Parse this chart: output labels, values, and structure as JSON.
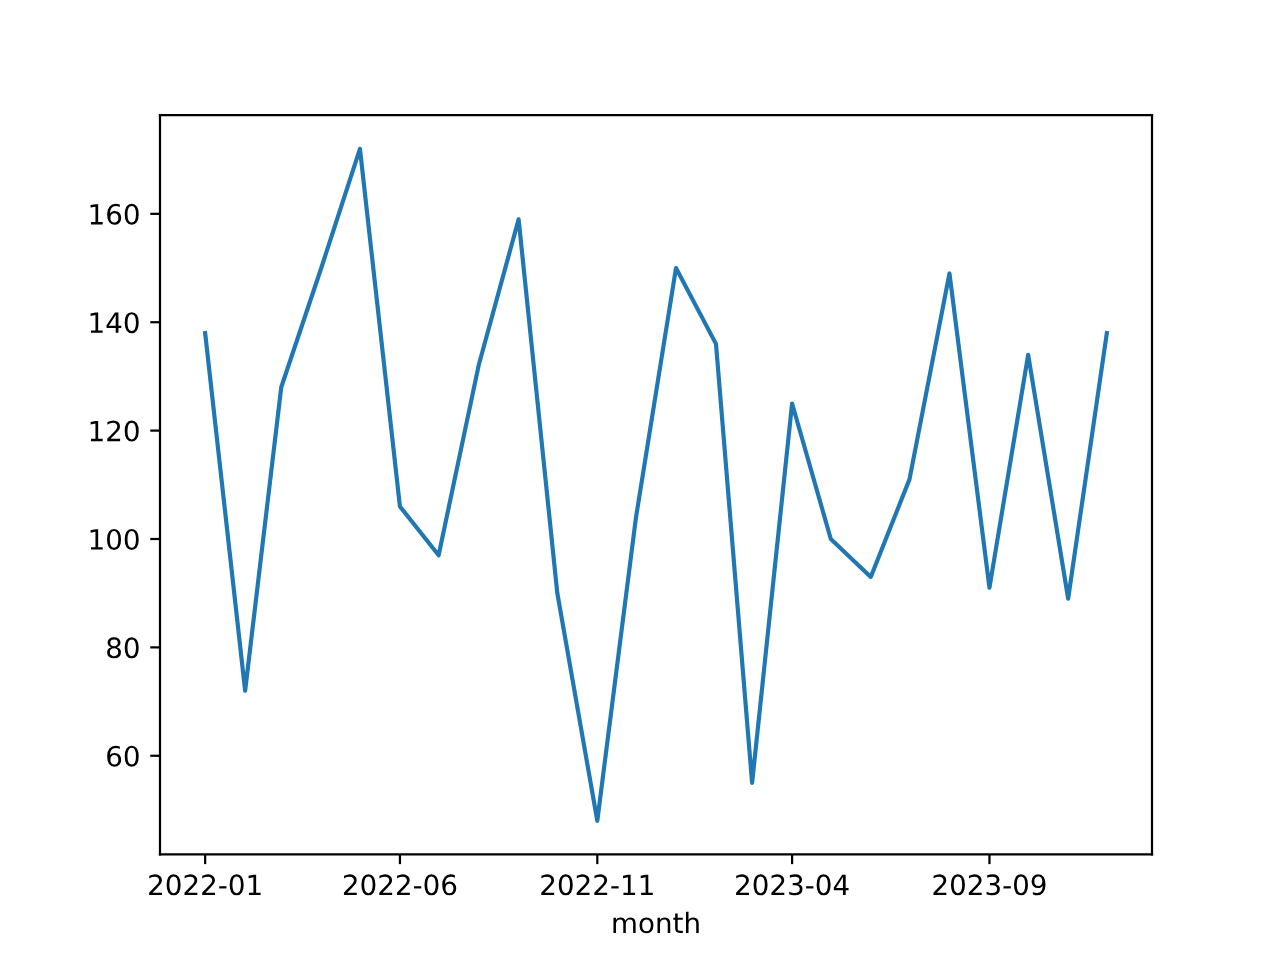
{
  "chart_data": {
    "type": "line",
    "xlabel": "month",
    "x": [
      "2022-01",
      "2022-02",
      "2022-03",
      "2022-04",
      "2022-05",
      "2022-06",
      "2022-07",
      "2022-08",
      "2022-09",
      "2022-10",
      "2022-11",
      "2022-12",
      "2023-01",
      "2023-02",
      "2023-03",
      "2023-04",
      "2023-05",
      "2023-06",
      "2023-07",
      "2023-08",
      "2023-09",
      "2023-10",
      "2023-11",
      "2023-12"
    ],
    "series": [
      {
        "color": "#1f77b4",
        "values": [
          138,
          72,
          128,
          150,
          172,
          106,
          97,
          132,
          159,
          90,
          48,
          104,
          150,
          136,
          55,
          125,
          100,
          93,
          111,
          149,
          91,
          134,
          89,
          138
        ]
      }
    ],
    "xlim": [
      "2021-11-27",
      "2024-01-05"
    ],
    "xticks": [
      {
        "value": "2022-01",
        "label": "2022-01"
      },
      {
        "value": "2022-06",
        "label": "2022-06"
      },
      {
        "value": "2022-11",
        "label": "2022-11"
      },
      {
        "value": "2023-04",
        "label": "2023-04"
      },
      {
        "value": "2023-09",
        "label": "2023-09"
      }
    ],
    "ylim": [
      41.8,
      178.2
    ],
    "yticks": [
      60,
      80,
      100,
      120,
      140,
      160
    ],
    "grid": false,
    "legend": false,
    "marker": "none",
    "line_style": "solid"
  }
}
